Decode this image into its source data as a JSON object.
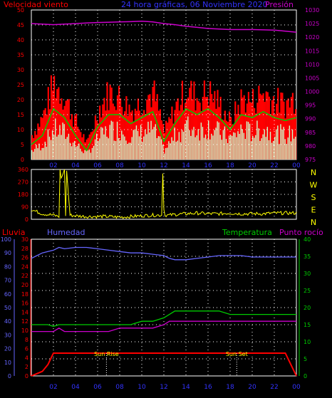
{
  "header": {
    "wind_label": "Velocidad viento",
    "title": "24 hora gráficas, 06 Noviembre 2020",
    "pressure_label": "Presión"
  },
  "colors": {
    "wind": "#ff0000",
    "wind_avg": "#00cc00",
    "wind_min": "#ccffcc",
    "pressure": "#cc00cc",
    "direction": "#ffff00",
    "humidity": "#6666ff",
    "temperature": "#00cc00",
    "dewpoint": "#cc00cc",
    "rain": "#ff0000",
    "left_axis": "#ff0000",
    "right_axis": "#cc00cc",
    "humidity_axis": "#6666ff",
    "temp_axis": "#00cc00",
    "dir_axis": "#ffff00",
    "grid": "#ffffff"
  },
  "x_tick_labels": [
    "02",
    "04",
    "06",
    "08",
    "10",
    "12",
    "14",
    "16",
    "18",
    "20",
    "22",
    "00"
  ],
  "bottom_labels": {
    "rain": "Lluvia",
    "humidity": "Humedad",
    "temperature": "Temperatura",
    "dewpoint": "Punto rocío",
    "sunrise": "Sun Rise",
    "sunset": "Sun Set"
  },
  "direction_letters": [
    "N",
    "W",
    "S",
    "E",
    "N"
  ],
  "chart_data": [
    {
      "type": "area",
      "title": "24 hora gráficas, 06 Noviembre 2020",
      "xlabel": "",
      "ylabel": "Velocidad viento",
      "y2label": "Presión",
      "x_hours": [
        0,
        1,
        2,
        3,
        4,
        5,
        6,
        7,
        8,
        9,
        10,
        11,
        12,
        13,
        14,
        15,
        16,
        17,
        18,
        19,
        20,
        21,
        22,
        23,
        24
      ],
      "ylim": [
        0,
        50
      ],
      "y_ticks": [
        0,
        5,
        10,
        15,
        20,
        25,
        30,
        35,
        40,
        45,
        50
      ],
      "y2lim": [
        975,
        1030
      ],
      "y2_ticks": [
        975,
        980,
        985,
        990,
        995,
        1000,
        1005,
        1010,
        1015,
        1020,
        1025,
        1030
      ],
      "series": [
        {
          "name": "wind_gust",
          "values": [
            8,
            14,
            25,
            20,
            12,
            5,
            16,
            22,
            20,
            16,
            19,
            22,
            9,
            17,
            23,
            20,
            22,
            18,
            12,
            20,
            19,
            22,
            19,
            18,
            21
          ]
        },
        {
          "name": "wind_avg",
          "values": [
            5,
            8,
            17,
            14,
            8,
            3,
            11,
            15,
            15,
            12,
            14,
            16,
            6,
            12,
            17,
            15,
            17,
            14,
            10,
            15,
            14,
            16,
            14,
            13,
            14
          ]
        },
        {
          "name": "wind_min",
          "values": [
            3,
            5,
            10,
            9,
            5,
            2,
            7,
            10,
            10,
            8,
            9,
            10,
            3,
            8,
            11,
            10,
            11,
            9,
            7,
            10,
            9,
            10,
            9,
            8,
            9
          ]
        },
        {
          "name": "pressure",
          "values": [
            1025,
            1024.8,
            1024.6,
            1024.8,
            1025.0,
            1025.2,
            1025.4,
            1025.5,
            1025.6,
            1025.7,
            1025.9,
            1025.6,
            1025.0,
            1024.6,
            1024.0,
            1023.6,
            1023.2,
            1023.0,
            1022.8,
            1022.8,
            1022.8,
            1022.7,
            1022.6,
            1022.2,
            1021.8
          ]
        }
      ]
    },
    {
      "type": "line",
      "title": "",
      "xlabel": "",
      "ylabel": "",
      "ylim": [
        0,
        360
      ],
      "y_ticks": [
        0,
        90,
        180,
        270,
        360
      ],
      "x_hours": [
        0,
        0.5,
        1,
        1.5,
        2,
        2.5,
        2.6,
        2.7,
        3,
        3.1,
        3.2,
        3.5,
        4,
        5,
        6,
        7,
        8,
        9,
        10,
        11,
        11.8,
        11.9,
        12,
        12.1,
        12.5,
        13,
        14,
        15,
        16,
        17,
        18,
        19,
        20,
        21,
        22,
        23,
        24
      ],
      "series": [
        {
          "name": "wind_direction",
          "values": [
            70,
            55,
            40,
            35,
            30,
            20,
            360,
            290,
            360,
            30,
            350,
            30,
            25,
            20,
            20,
            20,
            15,
            20,
            25,
            30,
            30,
            330,
            80,
            30,
            30,
            35,
            40,
            45,
            40,
            40,
            45,
            40,
            40,
            40,
            45,
            45,
            45
          ]
        }
      ]
    },
    {
      "type": "line",
      "title": "",
      "xlabel": "",
      "ylabel": "Humedad",
      "y2label": "Temperatura",
      "x_hours": [
        0,
        0.5,
        1,
        1.5,
        2,
        2.5,
        3,
        4,
        5,
        6,
        7,
        8,
        9,
        10,
        11,
        12,
        12.5,
        13,
        14,
        15,
        16,
        17,
        18,
        19,
        20,
        21,
        22,
        23,
        24
      ],
      "humidity_ylim": [
        0,
        100
      ],
      "humidity_ticks": [
        0,
        10,
        20,
        30,
        40,
        50,
        60,
        70,
        80,
        90,
        100
      ],
      "rain_ylim": [
        0,
        30
      ],
      "rain_ticks": [
        0,
        2,
        4,
        6,
        8,
        10,
        12,
        14,
        16,
        18,
        20,
        22,
        24,
        26,
        28,
        30
      ],
      "temp_ylim": [
        0,
        40
      ],
      "temp_ticks": [
        0,
        5,
        10,
        15,
        20,
        25,
        30,
        35,
        40
      ],
      "series": [
        {
          "name": "humidity",
          "values": [
            86,
            88,
            90,
            91,
            92,
            94,
            93,
            94,
            94,
            93,
            92,
            91,
            90,
            90,
            89,
            88,
            86,
            85,
            85,
            86,
            87,
            88,
            88,
            88,
            87,
            87,
            87,
            87,
            87
          ]
        },
        {
          "name": "temperature",
          "values": [
            15,
            15,
            15,
            15,
            14.5,
            15,
            15,
            15,
            15,
            15,
            15,
            15,
            15,
            16,
            16,
            17,
            18,
            19,
            19,
            19,
            19,
            19,
            18,
            18,
            18,
            18,
            18,
            18,
            18
          ]
        },
        {
          "name": "dewpoint",
          "values": [
            13,
            13,
            13,
            13,
            13,
            14,
            13,
            13,
            13,
            13,
            13,
            14,
            14,
            14,
            14,
            15,
            16,
            16,
            16,
            16,
            16,
            16,
            16,
            16,
            16,
            16,
            16,
            16,
            16
          ]
        },
        {
          "name": "rain",
          "values": [
            0,
            0.5,
            1,
            2.5,
            5,
            5,
            5,
            5,
            5,
            5,
            5,
            5,
            5,
            5,
            5,
            5,
            5,
            5,
            5,
            5,
            5,
            5,
            5,
            5,
            5,
            5,
            5,
            5,
            0
          ]
        }
      ],
      "sunrise_hour": 6.8,
      "sunset_hour": 18.6
    }
  ]
}
